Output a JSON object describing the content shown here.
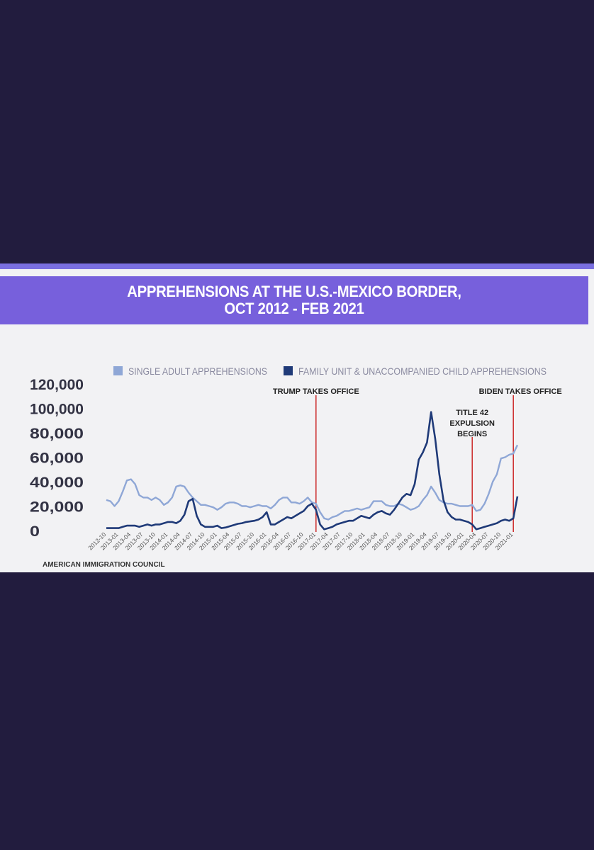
{
  "header": {
    "title_line1": "APPREHENSIONS AT THE U.S.-MEXICO BORDER,",
    "title_line2": "OCT 2012 - FEB 2021"
  },
  "source": "AMERICAN IMMIGRATION COUNCIL",
  "colors": {
    "background": "#221c3e",
    "title_band": "#7760dc",
    "single_adult": "#8fa7d6",
    "family_child": "#1f3a78",
    "event_line": "#cc2b2b"
  },
  "chart_data": {
    "type": "line",
    "title": "APPREHENSIONS AT THE U.S.-MEXICO BORDER, OCT 2012 - FEB 2021",
    "xlabel": "",
    "ylabel": "",
    "ylim": [
      0,
      120000
    ],
    "yticks": [
      "120,000",
      "100,000",
      "80,000",
      "60,000",
      "40,000",
      "20,000",
      "0"
    ],
    "x_tick_labels": [
      "2012-10",
      "2013-01",
      "2013-04",
      "2013-07",
      "2013-10",
      "2014-01",
      "2014-04",
      "2014-07",
      "2014-10",
      "2015-01",
      "2015-04",
      "2015-07",
      "2015-10",
      "2016-01",
      "2016-04",
      "2016-07",
      "2016-10",
      "2017-01",
      "2017-04",
      "2017-07",
      "2017-10",
      "2018-01",
      "2018-04",
      "2018-07",
      "2018-10",
      "2019-01",
      "2019-04",
      "2019-07",
      "2019-10",
      "2020-01",
      "2020-04",
      "2020-07",
      "2020-10",
      "2021-01"
    ],
    "legend_position": "top",
    "grid": false,
    "series": [
      {
        "name": "SINGLE ADULT APPREHENSIONS",
        "x": [
          "2012-10",
          "2012-11",
          "2012-12",
          "2013-01",
          "2013-02",
          "2013-03",
          "2013-04",
          "2013-05",
          "2013-06",
          "2013-07",
          "2013-08",
          "2013-09",
          "2013-10",
          "2013-11",
          "2013-12",
          "2014-01",
          "2014-02",
          "2014-03",
          "2014-04",
          "2014-05",
          "2014-06",
          "2014-07",
          "2014-08",
          "2014-09",
          "2014-10",
          "2014-11",
          "2014-12",
          "2015-01",
          "2015-02",
          "2015-03",
          "2015-04",
          "2015-05",
          "2015-06",
          "2015-07",
          "2015-08",
          "2015-09",
          "2015-10",
          "2015-11",
          "2015-12",
          "2016-01",
          "2016-02",
          "2016-03",
          "2016-04",
          "2016-05",
          "2016-06",
          "2016-07",
          "2016-08",
          "2016-09",
          "2016-10",
          "2016-11",
          "2016-12",
          "2017-01",
          "2017-02",
          "2017-03",
          "2017-04",
          "2017-05",
          "2017-06",
          "2017-07",
          "2017-08",
          "2017-09",
          "2017-10",
          "2017-11",
          "2017-12",
          "2018-01",
          "2018-02",
          "2018-03",
          "2018-04",
          "2018-05",
          "2018-06",
          "2018-07",
          "2018-08",
          "2018-09",
          "2018-10",
          "2018-11",
          "2018-12",
          "2019-01",
          "2019-02",
          "2019-03",
          "2019-04",
          "2019-05",
          "2019-06",
          "2019-07",
          "2019-08",
          "2019-09",
          "2019-10",
          "2019-11",
          "2019-12",
          "2020-01",
          "2020-02",
          "2020-03",
          "2020-04",
          "2020-05",
          "2020-06",
          "2020-07",
          "2020-08",
          "2020-09",
          "2020-10",
          "2020-11",
          "2020-12",
          "2021-01",
          "2021-02"
        ],
        "values": [
          25000,
          24000,
          20000,
          24000,
          32000,
          41000,
          42000,
          38000,
          29000,
          27000,
          27000,
          25000,
          27000,
          25000,
          21000,
          23000,
          27000,
          36000,
          37000,
          36000,
          31000,
          27000,
          24000,
          21000,
          21000,
          20000,
          19000,
          17000,
          19000,
          22000,
          23000,
          23000,
          22000,
          20000,
          20000,
          19000,
          20000,
          21000,
          20000,
          20000,
          18000,
          21000,
          25000,
          27000,
          27000,
          23000,
          23000,
          22000,
          24000,
          27000,
          23000,
          22000,
          15000,
          10000,
          9000,
          11000,
          12000,
          14000,
          16000,
          16000,
          17000,
          18000,
          17000,
          18000,
          19000,
          24000,
          24000,
          24000,
          21000,
          20000,
          20000,
          22000,
          21000,
          19000,
          17000,
          18000,
          20000,
          25000,
          29000,
          36000,
          31000,
          25000,
          23000,
          22000,
          22000,
          21000,
          20000,
          20000,
          20000,
          21000,
          16000,
          17000,
          22000,
          30000,
          40000,
          46000,
          59000,
          60000,
          62000,
          63000,
          70000
        ]
      },
      {
        "name": "FAMILY UNIT & UNACCOMPANIED CHILD APPREHENSIONS",
        "x": [
          "2012-10",
          "2012-11",
          "2012-12",
          "2013-01",
          "2013-02",
          "2013-03",
          "2013-04",
          "2013-05",
          "2013-06",
          "2013-07",
          "2013-08",
          "2013-09",
          "2013-10",
          "2013-11",
          "2013-12",
          "2014-01",
          "2014-02",
          "2014-03",
          "2014-04",
          "2014-05",
          "2014-06",
          "2014-07",
          "2014-08",
          "2014-09",
          "2014-10",
          "2014-11",
          "2014-12",
          "2015-01",
          "2015-02",
          "2015-03",
          "2015-04",
          "2015-05",
          "2015-06",
          "2015-07",
          "2015-08",
          "2015-09",
          "2015-10",
          "2015-11",
          "2015-12",
          "2016-01",
          "2016-02",
          "2016-03",
          "2016-04",
          "2016-05",
          "2016-06",
          "2016-07",
          "2016-08",
          "2016-09",
          "2016-10",
          "2016-11",
          "2016-12",
          "2017-01",
          "2017-02",
          "2017-03",
          "2017-04",
          "2017-05",
          "2017-06",
          "2017-07",
          "2017-08",
          "2017-09",
          "2017-10",
          "2017-11",
          "2017-12",
          "2018-01",
          "2018-02",
          "2018-03",
          "2018-04",
          "2018-05",
          "2018-06",
          "2018-07",
          "2018-08",
          "2018-09",
          "2018-10",
          "2018-11",
          "2018-12",
          "2019-01",
          "2019-02",
          "2019-03",
          "2019-04",
          "2019-05",
          "2019-06",
          "2019-07",
          "2019-08",
          "2019-09",
          "2019-10",
          "2019-11",
          "2019-12",
          "2020-01",
          "2020-02",
          "2020-03",
          "2020-04",
          "2020-05",
          "2020-06",
          "2020-07",
          "2020-08",
          "2020-09",
          "2020-10",
          "2020-11",
          "2020-12",
          "2021-01",
          "2021-02"
        ],
        "values": [
          2000,
          2000,
          2000,
          2000,
          3000,
          4000,
          4000,
          4000,
          3000,
          4000,
          5000,
          4000,
          5000,
          5000,
          6000,
          7000,
          7000,
          6000,
          8000,
          13000,
          24000,
          26000,
          12000,
          5000,
          3000,
          3000,
          3000,
          4000,
          2000,
          2500,
          3500,
          4500,
          5500,
          6000,
          7000,
          7500,
          8000,
          9000,
          11000,
          15000,
          5000,
          5000,
          7000,
          9000,
          11000,
          10000,
          12000,
          14000,
          16000,
          20000,
          22000,
          17000,
          5000,
          1000,
          2000,
          3000,
          5000,
          6000,
          7000,
          8000,
          8000,
          10000,
          12000,
          11000,
          10000,
          13000,
          15000,
          16000,
          14000,
          13000,
          17000,
          22000,
          27000,
          30000,
          29000,
          38000,
          58000,
          64000,
          72000,
          97000,
          75000,
          46000,
          25000,
          15000,
          11000,
          9000,
          9000,
          8000,
          7000,
          5000,
          1000,
          2000,
          3000,
          4000,
          5000,
          6000,
          8000,
          9000,
          8000,
          10000,
          28000
        ]
      }
    ],
    "annotations": [
      {
        "x": "2017-01",
        "label_lines": [
          "TRUMP TAKES OFFICE"
        ]
      },
      {
        "x": "2020-03",
        "label_lines": [
          "TITLE 42",
          "EXPULSION",
          "BEGINS"
        ]
      },
      {
        "x": "2021-01",
        "label_lines": [
          "BIDEN TAKES OFFICE"
        ]
      }
    ]
  }
}
